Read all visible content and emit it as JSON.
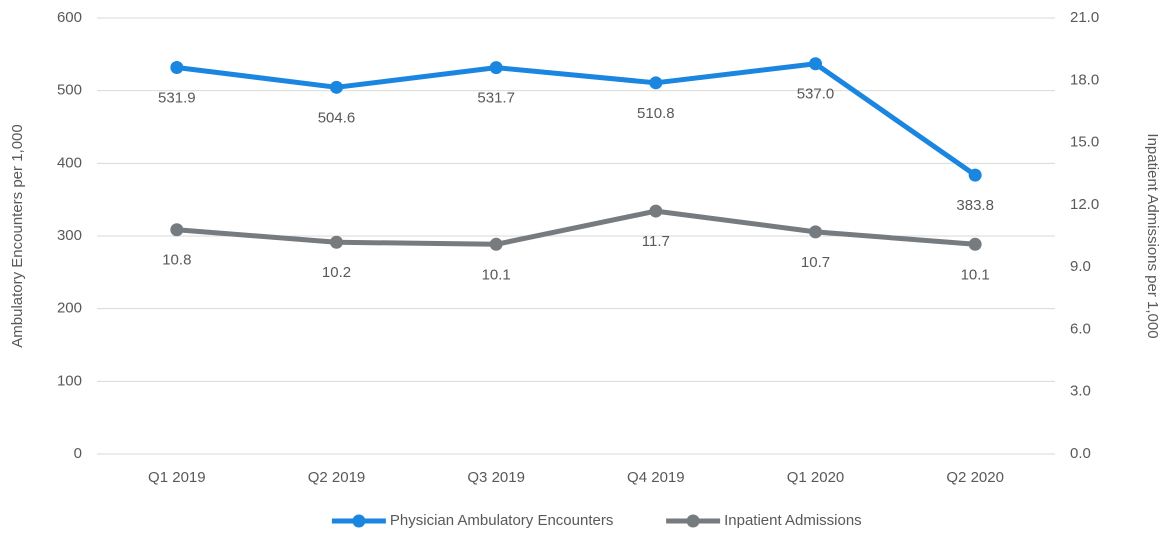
{
  "chart_data": {
    "type": "line",
    "categories": [
      "Q1 2019",
      "Q2 2019",
      "Q3 2019",
      "Q4 2019",
      "Q1 2020",
      "Q2 2020"
    ],
    "series": [
      {
        "name": "Physician Ambulatory Encounters",
        "color": "#1a86e0",
        "values": [
          531.9,
          504.6,
          531.7,
          510.8,
          537.0,
          383.8
        ],
        "value_labels": [
          "531.9",
          "504.6",
          "531.7",
          "510.8",
          "537.0",
          "383.8"
        ]
      },
      {
        "name": "Inpatient Admissions",
        "color": "#767b80",
        "axis": "y2",
        "values": [
          10.8,
          10.2,
          10.1,
          11.7,
          10.7,
          10.1
        ]
      }
    ],
    "ylabel": "Ambulatory Encounters per 1,000",
    "y2label": "Inpatient Admissions per 1,000",
    "ylim": [
      0,
      600
    ],
    "yticks": [
      0,
      100,
      200,
      300,
      400,
      500,
      600
    ],
    "y2lim": [
      0,
      21
    ],
    "y2ticks": [
      {
        "value": 0,
        "label": "0.0"
      },
      {
        "value": 3,
        "label": "3.0"
      },
      {
        "value": 6,
        "label": "6.0"
      },
      {
        "value": 9,
        "label": "9.0"
      },
      {
        "value": 12,
        "label": "12.0"
      },
      {
        "value": 15,
        "label": "15.0"
      },
      {
        "value": 18,
        "label": "18.0"
      },
      {
        "value": 21,
        "label": "21.0"
      }
    ],
    "grid": true,
    "legend": "bottom"
  }
}
